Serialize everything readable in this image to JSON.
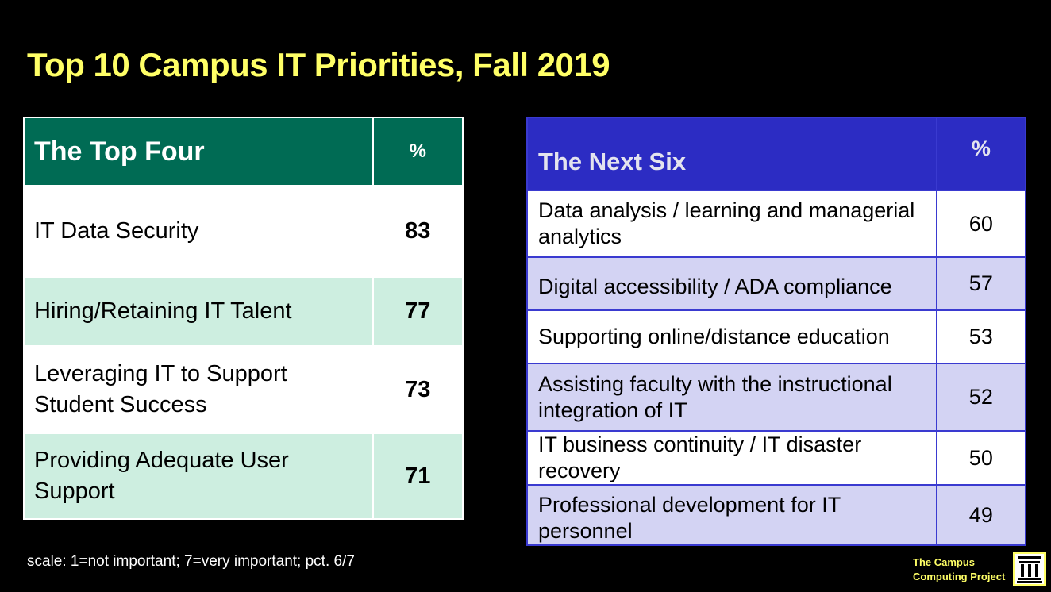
{
  "title": "Top 10 Campus IT Priorities, Fall 2019",
  "top_four": {
    "header": {
      "name": "The Top Four",
      "pct": "%"
    },
    "rows": [
      {
        "name": "IT Data Security",
        "value": "83"
      },
      {
        "name": "Hiring/Retaining  IT Talent",
        "value": "77"
      },
      {
        "name": "Leveraging IT to Support Student  Success",
        "value": "73"
      },
      {
        "name": "Providing Adequate User Support",
        "value": "71"
      }
    ]
  },
  "next_six": {
    "header": {
      "name": "The Next Six",
      "pct": "%"
    },
    "rows": [
      {
        "name": "Data analysis / learning and managerial analytics",
        "value": "60"
      },
      {
        "name": "Digital accessibility / ADA compliance",
        "value": "57"
      },
      {
        "name": "Supporting online/distance education",
        "value": "53"
      },
      {
        "name": "Assisting faculty with the instructional integration of IT",
        "value": "52"
      },
      {
        "name": "IT business continuity / IT disaster recovery",
        "value": "50"
      },
      {
        "name": "Professional development for IT personnel",
        "value": "49"
      }
    ]
  },
  "footnote": "scale: 1=not important; 7=very important; pct. 6/7",
  "brand": {
    "line1": "The Campus",
    "line2": "Computing Project"
  },
  "colors": {
    "title": "#ffff66",
    "left_header": "#006b54",
    "left_alt_row": "#cdeee0",
    "right_header": "#2c2cc3",
    "right_alt_row": "#d3d3f3"
  }
}
